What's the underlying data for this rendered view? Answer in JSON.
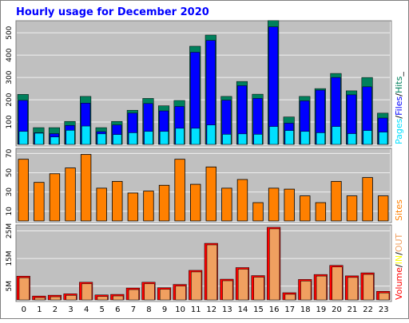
{
  "colors": {
    "background": "#ffffff",
    "panel_bg": "#c0c0c0",
    "grid": "#f0f0f0",
    "title": "#0000ff",
    "hits": "#00805c",
    "files": "#0000ff",
    "pages": "#00e0ff",
    "sites": "#ff8000",
    "kbytes": "#ff0000",
    "visits": "#f0a060"
  },
  "chart_data": {
    "type": "bar",
    "title": "Hourly usage for December 2020",
    "categories": [
      "0",
      "1",
      "2",
      "3",
      "4",
      "5",
      "6",
      "7",
      "8",
      "9",
      "10",
      "11",
      "12",
      "13",
      "14",
      "15",
      "16",
      "17",
      "18",
      "19",
      "20",
      "21",
      "22",
      "23"
    ],
    "grid": true,
    "panels": [
      {
        "id": "requests",
        "ylim": [
          0,
          540
        ],
        "yticks": [
          "100",
          "200",
          "300",
          "400",
          "500"
        ],
        "legend": {
          "position": "right",
          "parts": [
            {
              "text": "Pages",
              "color": "#00e0ff"
            },
            {
              "text": "/",
              "color": "#000000"
            },
            {
              "text": "Files",
              "color": "#0000ff"
            },
            {
              "text": "/",
              "color": "#000000"
            },
            {
              "text": "Hits",
              "color": "#00805c"
            },
            {
              "text": "_",
              "color": "#000000"
            }
          ]
        },
        "series": [
          {
            "name": "Hits",
            "values": [
              224,
              75,
              75,
              103,
              215,
              75,
              103,
              153,
              206,
              173,
              197,
              440,
              490,
              215,
              282,
              225,
              555,
              123,
              215,
              250,
              318,
              240,
              300,
              140
            ]
          },
          {
            "name": "Files",
            "values": [
              197,
              52,
              48,
              85,
              185,
              57,
              87,
              140,
              183,
              150,
              170,
              413,
              466,
              198,
              263,
              206,
              527,
              95,
              195,
              243,
              300,
              222,
              258,
              118
            ]
          },
          {
            "name": "Pages",
            "values": [
              58,
              50,
              33,
              63,
              82,
              47,
              44,
              52,
              58,
              58,
              72,
              72,
              87,
              45,
              47,
              45,
              80,
              62,
              58,
              52,
              80,
              48,
              62,
              55
            ]
          }
        ]
      },
      {
        "id": "sites",
        "ylim": [
          0,
          72
        ],
        "yticks": [
          "10",
          "30",
          "50",
          "70"
        ],
        "legend": {
          "position": "right",
          "parts": [
            {
              "text": "Sites",
              "color": "#ff8000"
            }
          ]
        },
        "series": [
          {
            "name": "Sites",
            "values": [
              64,
              40,
              49,
              55,
              69,
              34,
              41,
              29,
              31,
              37,
              64,
              38,
              56,
              34,
              43,
              19,
              34,
              33,
              26,
              19,
              41,
              26,
              45,
              26
            ]
          }
        ]
      },
      {
        "id": "volume",
        "ylim": [
          0,
          2600
        ],
        "yticks": [
          "5M",
          "15M",
          "25M"
        ],
        "legend": {
          "position": "right",
          "parts": [
            {
              "text": "Volume",
              "color": "#ff0000"
            },
            {
              "text": "/",
              "color": "#000000"
            },
            {
              "text": "IN",
              "color": "#ffff00"
            },
            {
              "text": "/",
              "color": "#000000"
            },
            {
              "text": "OUT",
              "color": "#f0a060"
            }
          ]
        },
        "series": [
          {
            "name": "Volume",
            "values": [
              860,
              140,
              170,
              220,
              640,
              180,
              200,
              430,
              640,
              440,
              560,
              1070,
              2050,
              750,
              1170,
              880,
              2630,
              260,
              740,
              920,
              1250,
              870,
              980,
              310
            ]
          }
        ]
      }
    ]
  }
}
